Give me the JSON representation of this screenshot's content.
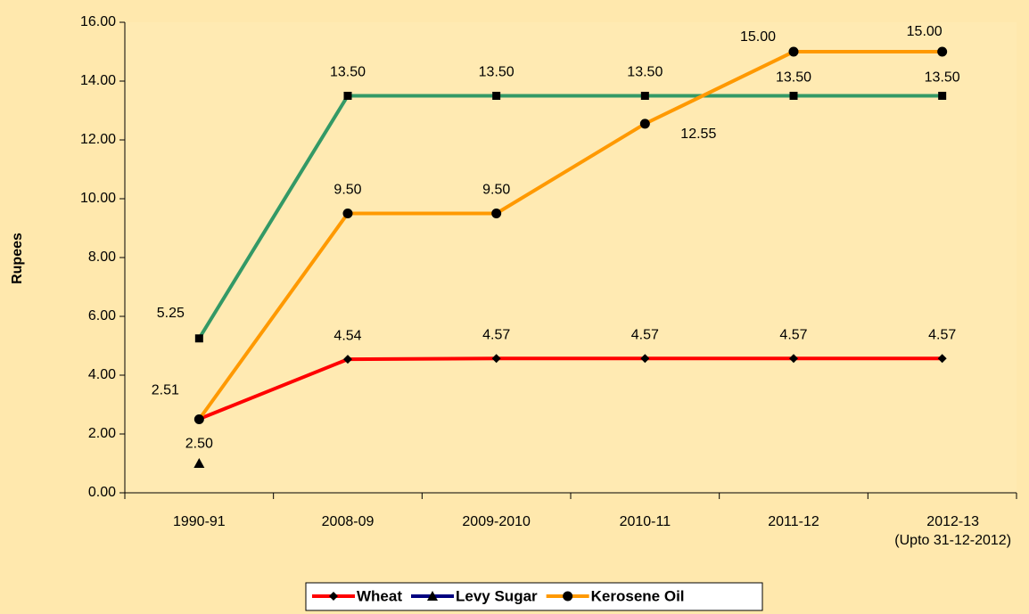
{
  "chart_data": {
    "type": "line",
    "y_axis_label": "Rupees",
    "categories": [
      "1990-91",
      "2008-09",
      "2009-2010",
      "2010-11",
      "2011-12",
      "2012-13\n(Upto 31-12-2012)"
    ],
    "series": [
      {
        "name": "Wheat",
        "color": "#ff0000",
        "marker": "diamond",
        "values": [
          2.51,
          4.54,
          4.57,
          4.57,
          4.57,
          4.57
        ],
        "value_labels": [
          "2.51",
          "4.54",
          "4.57",
          "4.57",
          "4.57",
          "4.57"
        ]
      },
      {
        "name": "Levy Sugar",
        "color": "#339966",
        "legend_color": "#000080",
        "marker": "square",
        "legend_marker": "triangle",
        "values": [
          5.25,
          13.5,
          13.5,
          13.5,
          13.5,
          13.5
        ],
        "value_labels": [
          "5.25",
          "13.50",
          "13.50",
          "13.50",
          "13.50",
          "13.50"
        ]
      },
      {
        "name": "Kerosene Oil",
        "color": "#ff9900",
        "marker": "circle",
        "values": [
          2.5,
          9.5,
          9.5,
          12.55,
          15.0,
          15.0
        ],
        "value_labels": [
          "2.50",
          "9.50",
          "9.50",
          "12.55",
          "15.00",
          "15.00"
        ]
      },
      {
        "color": "#000000",
        "marker": "triangle",
        "values": [
          1.0,
          null,
          null,
          null,
          null,
          null
        ]
      }
    ],
    "ylim": [
      0,
      16
    ],
    "yticks": [
      {
        "value": 0,
        "label": "0.00"
      },
      {
        "value": 2,
        "label": "2.00"
      },
      {
        "value": 4,
        "label": "4.00"
      },
      {
        "value": 6,
        "label": "6.00"
      },
      {
        "value": 8,
        "label": "8.00"
      },
      {
        "value": 10,
        "label": "10.00"
      },
      {
        "value": 12,
        "label": "12.00"
      },
      {
        "value": 14,
        "label": "14.00"
      },
      {
        "value": 16,
        "label": "16.00"
      }
    ],
    "legend": "bottom"
  }
}
